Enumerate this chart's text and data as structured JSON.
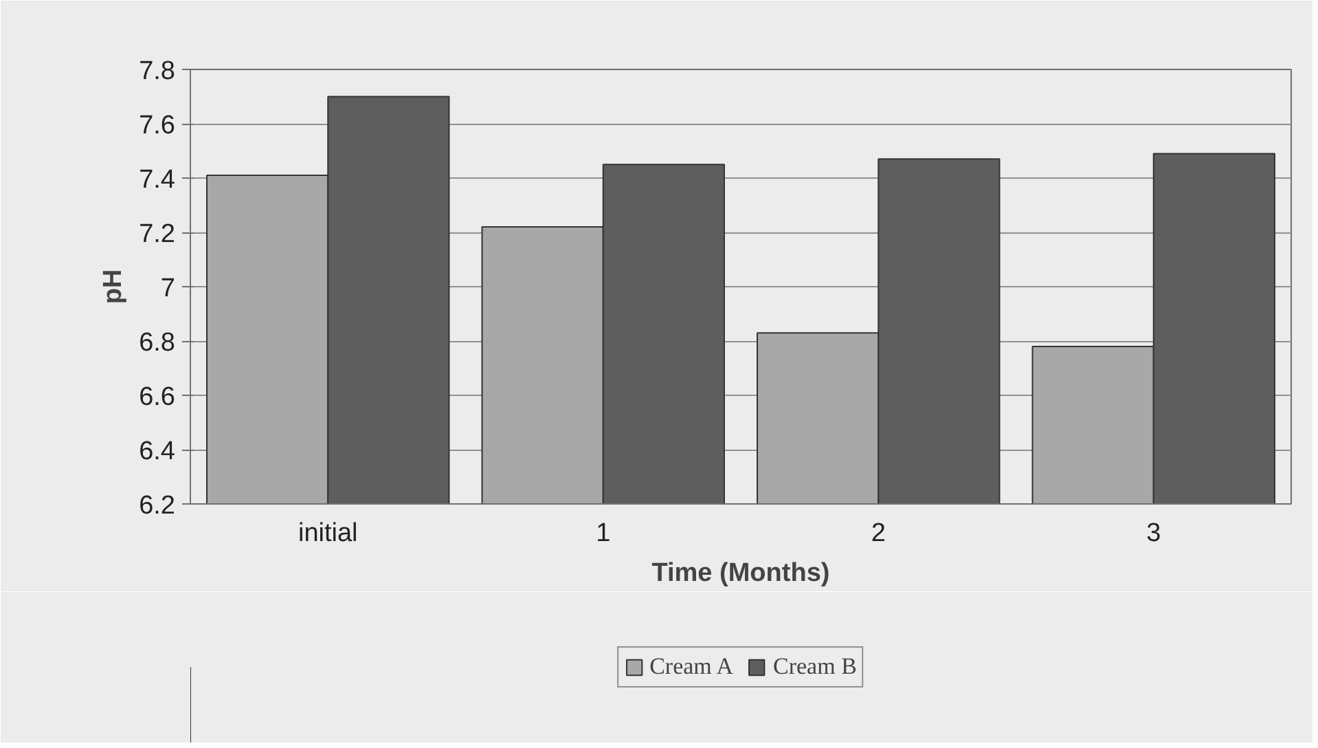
{
  "chart_data": {
    "type": "bar",
    "xlabel": "Time (Months)",
    "ylabel": "pH",
    "categories": [
      "initial",
      "1",
      "2",
      "3"
    ],
    "series": [
      {
        "name": "Cream A",
        "color": "#a8a8a8",
        "values": [
          7.41,
          7.22,
          6.83,
          6.78
        ]
      },
      {
        "name": "Cream B",
        "color": "#5e5e5e",
        "values": [
          7.7,
          7.45,
          7.47,
          7.49
        ]
      }
    ],
    "ylim": [
      6.2,
      7.8
    ],
    "yticks": [
      6.2,
      6.4,
      6.6,
      6.8,
      7,
      7.2,
      7.4,
      7.6,
      7.8
    ],
    "grid": "y",
    "legend": "bottom"
  }
}
